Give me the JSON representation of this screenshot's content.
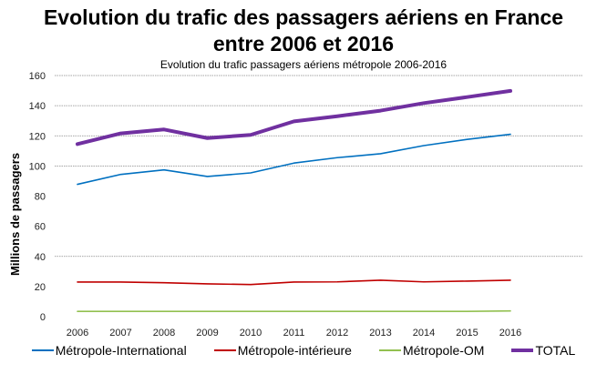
{
  "chart_data": {
    "type": "line",
    "title": "Evolution du trafic des passagers aériens en France",
    "title_line2": "entre 2006 et 2016",
    "subtitle": "Evolution du trafic passagers aériens métropole 2006-2016",
    "ylabel": "Millions de passagers",
    "xlabel": "",
    "ylim": [
      0,
      160
    ],
    "yticks": [
      "0",
      "20",
      "40",
      "60",
      "80",
      "100",
      "120",
      "140",
      "160"
    ],
    "grid": true,
    "legend_position": "bottom",
    "x": [
      "2006",
      "2007",
      "2008",
      "2009",
      "2010",
      "2011",
      "2012",
      "2013",
      "2014",
      "2015",
      "2016"
    ],
    "series": [
      {
        "name": "Métropole-International",
        "color": "#0070C0",
        "width": 1.6,
        "values": [
          87.8,
          94.4,
          97.4,
          93.0,
          95.4,
          101.9,
          105.5,
          108.1,
          113.5,
          117.6,
          121.0
        ]
      },
      {
        "name": "Métropole-intérieure",
        "color": "#C00000",
        "width": 1.6,
        "values": [
          23.0,
          23.0,
          22.5,
          21.8,
          21.3,
          23.0,
          23.1,
          24.2,
          23.1,
          23.6,
          24.2
        ]
      },
      {
        "name": "Métropole-OM",
        "color": "#92C050",
        "width": 1.6,
        "values": [
          3.5,
          3.5,
          3.5,
          3.5,
          3.5,
          3.5,
          3.5,
          3.5,
          3.5,
          3.5,
          3.8
        ]
      },
      {
        "name": "TOTAL",
        "color": "#7030A0",
        "width": 4,
        "values": [
          114.5,
          121.6,
          124.2,
          118.5,
          120.6,
          129.6,
          133.0,
          136.7,
          141.7,
          145.7,
          149.8
        ]
      }
    ]
  }
}
